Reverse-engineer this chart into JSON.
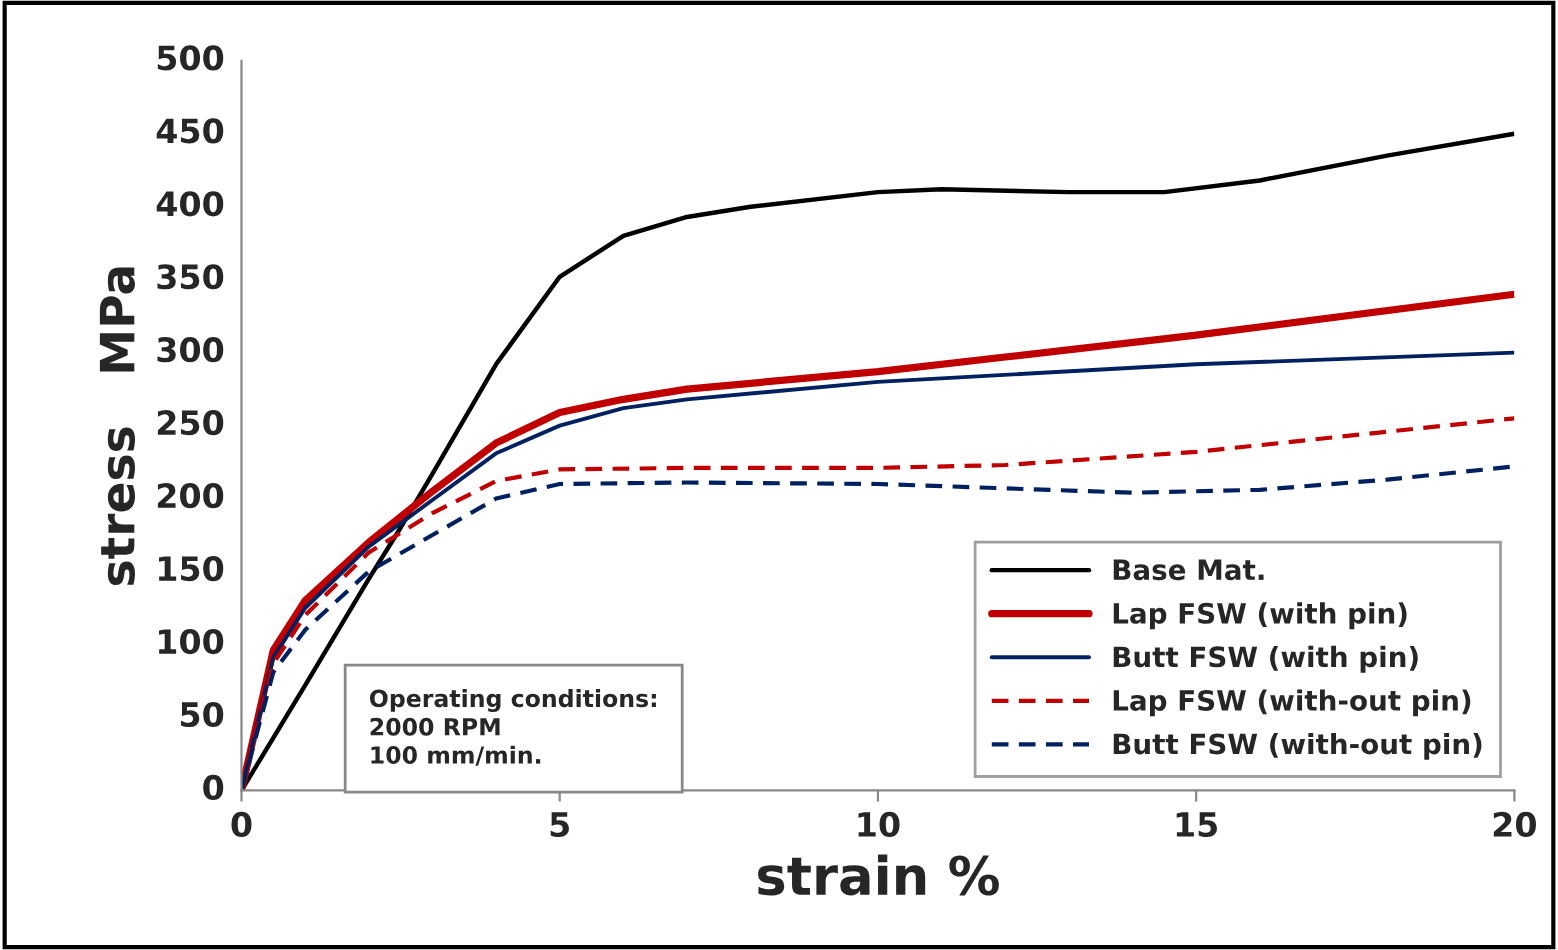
{
  "chart_data": {
    "type": "line",
    "xlabel": "strain %",
    "ylabel": "stress   MPa",
    "xlim": [
      0,
      20
    ],
    "xticks": [
      0,
      5,
      10,
      15,
      20
    ],
    "ylim": [
      0,
      500
    ],
    "yticks": [
      0,
      50,
      100,
      150,
      200,
      250,
      300,
      350,
      400,
      450,
      500
    ],
    "grid": false,
    "legend": "lower right",
    "annotations": [
      "Operating conditions:\n2000 RPM\n100 mm/min."
    ],
    "series": [
      {
        "name": "Base Mat.",
        "color": "#000000",
        "line_style": "solid",
        "x": [
          0,
          1,
          2,
          2.5,
          3,
          4,
          5,
          6,
          7,
          8,
          10,
          11,
          13,
          14.5,
          16,
          18,
          20
        ],
        "values": [
          0,
          72,
          145,
          180,
          217,
          292,
          352,
          380,
          393,
          400,
          410,
          412,
          410,
          410,
          418,
          435,
          450
        ]
      },
      {
        "name": "Lap FSW (with pin)",
        "color": "#c00000",
        "line_style": "solid",
        "x": [
          0,
          0.5,
          1,
          2,
          3,
          4,
          5,
          6,
          7,
          8,
          10,
          12,
          15,
          20
        ],
        "values": [
          0,
          96,
          130,
          170,
          205,
          238,
          259,
          268,
          275,
          279,
          287,
          297,
          312,
          340
        ]
      },
      {
        "name": "Butt FSW (with pin)",
        "color": "#002060",
        "line_style": "solid",
        "x": [
          0,
          0.5,
          1,
          2,
          3,
          4,
          5,
          6,
          7,
          10,
          15,
          20
        ],
        "values": [
          0,
          91,
          125,
          167,
          199,
          231,
          250,
          262,
          268,
          280,
          292,
          300
        ]
      },
      {
        "name": "Lap FSW (with-out pin)",
        "color": "#c00000",
        "line_style": "dashed",
        "x": [
          0,
          0.5,
          1,
          2,
          3,
          4,
          5,
          7,
          10,
          12,
          15,
          20
        ],
        "values": [
          0,
          87,
          120,
          163,
          190,
          212,
          220,
          221,
          221,
          223,
          232,
          255
        ]
      },
      {
        "name": "Butt FSW (with-out pin)",
        "color": "#002060",
        "line_style": "dashed",
        "x": [
          0,
          0.5,
          1,
          2,
          3,
          4,
          5,
          7,
          10,
          12,
          14,
          16,
          18,
          20
        ],
        "values": [
          0,
          81,
          110,
          150,
          175,
          200,
          210,
          211,
          210,
          207,
          204,
          206,
          213,
          222
        ]
      }
    ]
  }
}
